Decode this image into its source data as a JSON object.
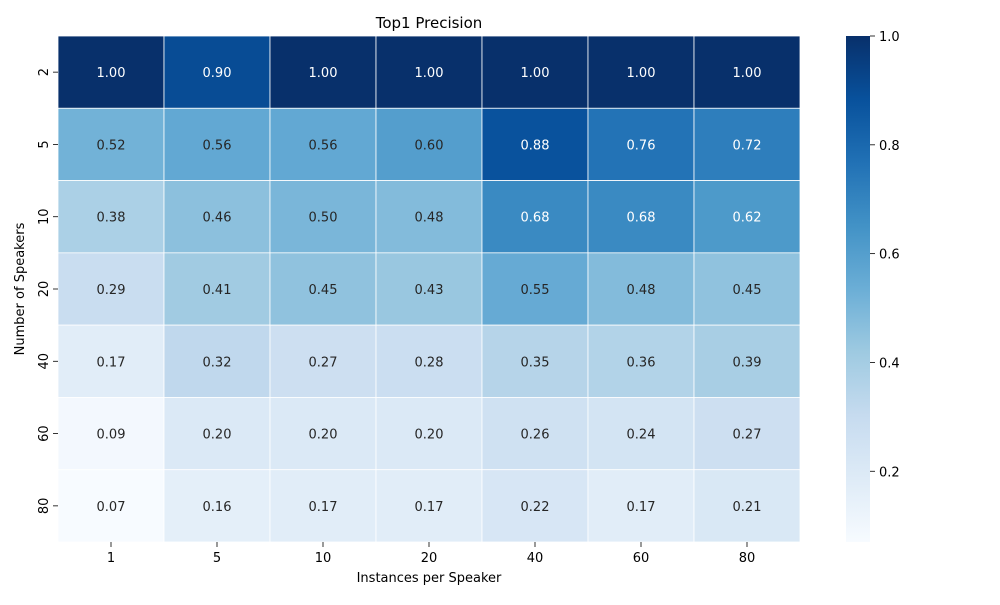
{
  "chart_data": {
    "type": "heatmap",
    "title": "Top1 Precision",
    "xlabel": "Instances per Speaker",
    "ylabel": "Number of Speakers",
    "x_categories": [
      "1",
      "5",
      "10",
      "20",
      "40",
      "60",
      "80"
    ],
    "y_categories": [
      "2",
      "5",
      "10",
      "20",
      "40",
      "60",
      "80"
    ],
    "values": [
      [
        1.0,
        0.9,
        1.0,
        1.0,
        1.0,
        1.0,
        1.0
      ],
      [
        0.52,
        0.56,
        0.56,
        0.6,
        0.88,
        0.76,
        0.72
      ],
      [
        0.38,
        0.46,
        0.5,
        0.48,
        0.68,
        0.68,
        0.62
      ],
      [
        0.29,
        0.41,
        0.45,
        0.43,
        0.55,
        0.48,
        0.45
      ],
      [
        0.17,
        0.32,
        0.27,
        0.28,
        0.35,
        0.36,
        0.39
      ],
      [
        0.09,
        0.2,
        0.2,
        0.2,
        0.26,
        0.24,
        0.27
      ],
      [
        0.07,
        0.16,
        0.17,
        0.17,
        0.22,
        0.17,
        0.21
      ]
    ],
    "value_format": "0.00",
    "colormap": "Blues",
    "vmin": 0.07,
    "vmax": 1.0,
    "colorbar_ticks": [
      "0.2",
      "0.4",
      "0.6",
      "0.8",
      "1.0"
    ],
    "grid": false,
    "legend": "colorbar-right"
  }
}
